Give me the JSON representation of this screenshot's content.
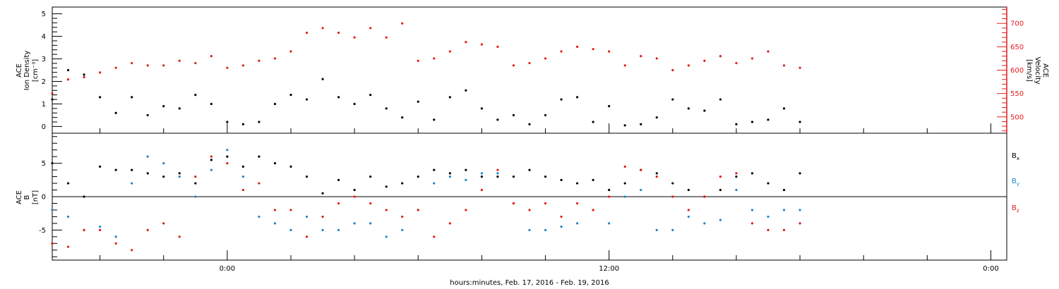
{
  "figure": {
    "xlabel": "hours:minutes, Feb. 17, 2016 - Feb. 19, 2016",
    "x_ticks": [
      "0:00",
      "12:00",
      "0:00"
    ]
  },
  "colors": {
    "axis": "#000000",
    "density": "#000000",
    "velocity": "#e31a1c",
    "bx": "#000000",
    "by": "#1a86d0",
    "bz": "#e31a1c"
  },
  "chart_data": [
    {
      "type": "scatter",
      "panel": "top",
      "ylabel_left": [
        "ACE",
        "Ion Density",
        "[cm⁻³]"
      ],
      "ylabel_right": [
        "ACE",
        "Velocity",
        "[km/s]"
      ],
      "x_unit": "hours from 00:00 Feb. 18, 2016",
      "xlim": [
        -5.5,
        24.5
      ],
      "ylim_left": [
        -0.3,
        5.3
      ],
      "yticks_left": [
        "0",
        "1",
        "2",
        "3",
        "4",
        "5"
      ],
      "ylim_right": [
        465,
        735
      ],
      "yticks_right": [
        "500",
        "550",
        "600",
        "650",
        "700"
      ],
      "grid": false,
      "series": [
        {
          "name": "Ion Density",
          "axis": "left",
          "x": [
            -5.5,
            -5.0,
            -4.5,
            -4.0,
            -3.5,
            -3.0,
            -2.5,
            -2.0,
            -1.5,
            -1.0,
            -0.5,
            0.0,
            0.5,
            1.0,
            1.5,
            2.0,
            2.5,
            3.0,
            3.5,
            4.0,
            4.5,
            5.0,
            5.5,
            6.0,
            6.5,
            7.0,
            7.5,
            8.0,
            8.5,
            9.0,
            9.5,
            10.0,
            10.5,
            11.0,
            11.5,
            12.0,
            12.5,
            13.0,
            13.5,
            14.0,
            14.5,
            15.0,
            15.5,
            16.0,
            16.5,
            17.0,
            17.5,
            18.0
          ],
          "values": [
            1.2,
            2.5,
            2.3,
            1.3,
            0.6,
            1.3,
            0.5,
            0.9,
            0.8,
            1.4,
            1.0,
            0.2,
            0.1,
            0.2,
            1.0,
            1.4,
            1.2,
            2.1,
            1.3,
            1.0,
            1.4,
            0.8,
            0.4,
            1.1,
            0.3,
            1.3,
            1.6,
            0.8,
            0.3,
            0.5,
            0.1,
            0.5,
            1.2,
            1.3,
            0.2,
            0.9,
            0.05,
            0.1,
            0.4,
            1.2,
            0.8,
            0.7,
            1.2,
            0.1,
            0.2,
            0.3,
            0.8,
            0.2
          ]
        },
        {
          "name": "Velocity",
          "axis": "right",
          "x": [
            -5.5,
            -5.0,
            -4.5,
            -4.0,
            -3.5,
            -3.0,
            -2.5,
            -2.0,
            -1.5,
            -1.0,
            -0.5,
            0.0,
            0.5,
            1.0,
            1.5,
            2.0,
            2.5,
            3.0,
            3.5,
            4.0,
            4.5,
            5.0,
            5.5,
            6.0,
            6.5,
            7.0,
            7.5,
            8.0,
            8.5,
            9.0,
            9.5,
            10.0,
            10.5,
            11.0,
            11.5,
            12.0,
            12.5,
            13.0,
            13.5,
            14.0,
            14.5,
            15.0,
            15.5,
            16.0,
            16.5,
            17.0,
            17.5,
            18.0
          ],
          "values": [
            550,
            580,
            585,
            595,
            605,
            615,
            610,
            610,
            620,
            615,
            630,
            605,
            610,
            620,
            625,
            640,
            680,
            690,
            680,
            670,
            690,
            670,
            700,
            620,
            625,
            640,
            660,
            655,
            650,
            610,
            615,
            625,
            640,
            650,
            645,
            640,
            610,
            630,
            625,
            600,
            610,
            620,
            630,
            615,
            625,
            640,
            610,
            605
          ]
        }
      ]
    },
    {
      "type": "scatter",
      "panel": "bottom",
      "ylabel_left": [
        "ACE",
        "B",
        "[nT]"
      ],
      "x_unit": "hours from 00:00 Feb. 18, 2016",
      "xlim": [
        -5.5,
        24.5
      ],
      "ylim": [
        -9.5,
        9.5
      ],
      "yticks": [
        "-5",
        "0",
        "5"
      ],
      "hline": 0,
      "grid": false,
      "series": [
        {
          "name": "Bx",
          "label_base": "B",
          "label_sub": "x",
          "x": [
            -5.5,
            -5.0,
            -4.5,
            -4.0,
            -3.5,
            -3.0,
            -2.5,
            -2.0,
            -1.5,
            -1.0,
            -0.5,
            0.0,
            0.5,
            1.0,
            1.5,
            2.0,
            2.5,
            3.0,
            3.5,
            4.0,
            4.5,
            5.0,
            5.5,
            6.0,
            6.5,
            7.0,
            7.5,
            8.0,
            8.5,
            9.0,
            9.5,
            10.0,
            10.5,
            11.0,
            11.5,
            12.0,
            12.5,
            13.0,
            13.5,
            14.0,
            14.5,
            15.0,
            15.5,
            16.0,
            16.5,
            17.0,
            17.5,
            18.0
          ],
          "values": [
            5.0,
            2.0,
            0.0,
            4.5,
            4.0,
            4.0,
            3.5,
            3.0,
            3.5,
            2.0,
            5.5,
            6.0,
            4.5,
            6.0,
            5.0,
            4.5,
            3.0,
            0.5,
            2.5,
            1.0,
            3.0,
            1.5,
            2.0,
            3.0,
            4.0,
            3.5,
            4.0,
            3.0,
            3.0,
            3.0,
            4.0,
            3.0,
            2.5,
            2.0,
            2.5,
            1.0,
            2.0,
            4.0,
            3.5,
            2.0,
            1.0,
            0.0,
            1.0,
            3.0,
            3.5,
            2.0,
            1.0,
            3.5
          ]
        },
        {
          "name": "By",
          "label_base": "B",
          "label_sub": "y",
          "x": [
            -5.5,
            -5.0,
            -4.5,
            -4.0,
            -3.5,
            -3.0,
            -2.5,
            -2.0,
            -1.5,
            -1.0,
            -0.5,
            0.0,
            0.5,
            1.0,
            1.5,
            2.0,
            2.5,
            3.0,
            3.5,
            4.0,
            4.5,
            5.0,
            5.5,
            6.0,
            6.5,
            7.0,
            7.5,
            8.0,
            8.5,
            9.0,
            9.5,
            10.0,
            10.5,
            11.0,
            11.5,
            12.0,
            12.5,
            13.0,
            13.5,
            14.0,
            14.5,
            15.0,
            15.5,
            16.0,
            16.5,
            17.0,
            17.5,
            18.0
          ],
          "values": [
            -2.0,
            -3.0,
            -5.0,
            -4.5,
            -6.0,
            2.0,
            6.0,
            5.0,
            3.0,
            0.0,
            4.0,
            7.0,
            3.0,
            -3.0,
            -4.0,
            -5.0,
            -3.0,
            -5.0,
            -5.0,
            -4.0,
            -4.0,
            -6.0,
            -5.0,
            -2.0,
            2.0,
            3.0,
            2.5,
            3.5,
            3.5,
            -1.0,
            -5.0,
            -5.0,
            -4.5,
            -4.0,
            -2.0,
            -4.0,
            0.0,
            1.0,
            -5.0,
            -5.0,
            -3.0,
            -4.0,
            -3.5,
            1.0,
            -2.0,
            -3.0,
            -2.0,
            -2.0
          ]
        },
        {
          "name": "Bz",
          "label_base": "B",
          "label_sub": "z",
          "x": [
            -5.5,
            -5.0,
            -4.5,
            -4.0,
            -3.5,
            -3.0,
            -2.5,
            -2.0,
            -1.5,
            -1.0,
            -0.5,
            0.0,
            0.5,
            1.0,
            1.5,
            2.0,
            2.5,
            3.0,
            3.5,
            4.0,
            4.5,
            5.0,
            5.5,
            6.0,
            6.5,
            7.0,
            7.5,
            8.0,
            8.5,
            9.0,
            9.5,
            10.0,
            10.5,
            11.0,
            11.5,
            12.0,
            12.5,
            13.0,
            13.5,
            14.0,
            14.5,
            15.0,
            15.5,
            16.0,
            16.5,
            17.0,
            17.5,
            18.0
          ],
          "values": [
            -7.0,
            -7.5,
            -5.0,
            -5.0,
            -7.0,
            -8.0,
            -5.0,
            -4.0,
            -6.0,
            3.0,
            6.0,
            5.0,
            1.0,
            2.0,
            -2.0,
            -2.0,
            -6.0,
            -3.0,
            -1.0,
            0.0,
            -1.0,
            -2.0,
            -3.0,
            -2.0,
            -6.0,
            -4.0,
            -2.0,
            1.0,
            4.0,
            -1.0,
            -2.0,
            -1.0,
            -3.0,
            -1.0,
            -2.0,
            0.0,
            4.5,
            4.0,
            3.0,
            0.0,
            -2.0,
            0.0,
            3.0,
            3.5,
            -4.0,
            -5.0,
            -5.0,
            -4.0
          ]
        }
      ]
    }
  ]
}
